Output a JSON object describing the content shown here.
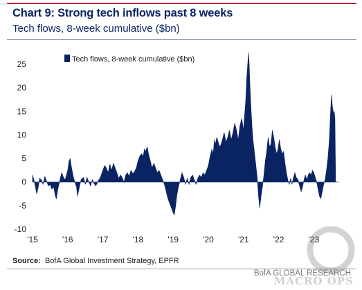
{
  "header": {
    "title": "Chart 9: Strong tech inflows past 8 weeks",
    "subtitle": "Tech flows, 8-week cumulative ($bn)"
  },
  "footer": {
    "source_label": "Source:",
    "source_text": "BofA Global Investment Strategy, EPFR",
    "credit": "BofA GLOBAL RESEARCH",
    "watermark": "MACRO OPS"
  },
  "colors": {
    "series": "#0a2463",
    "brand_red": "#c41c2c"
  },
  "chart_data": {
    "type": "area",
    "title": "",
    "xlabel": "",
    "ylabel": "",
    "ylim": [
      -10,
      27.5
    ],
    "yticks": [
      -10,
      -5,
      0,
      5,
      10,
      15,
      20,
      25
    ],
    "xlim": [
      2015.0,
      2023.72
    ],
    "xticks": [
      {
        "x": 2015,
        "label": "'15"
      },
      {
        "x": 2016,
        "label": "'16"
      },
      {
        "x": 2017,
        "label": "'17"
      },
      {
        "x": 2018,
        "label": "'18"
      },
      {
        "x": 2019,
        "label": "'19"
      },
      {
        "x": 2020,
        "label": "'20"
      },
      {
        "x": 2021,
        "label": "'21"
      },
      {
        "x": 2022,
        "label": "'22"
      },
      {
        "x": 2023,
        "label": "'23"
      }
    ],
    "grid": false,
    "legend": "top-left",
    "series": [
      {
        "name": "Tech flows, 8-week cumulative ($bn)",
        "points": [
          [
            2015.0,
            1.5
          ],
          [
            2015.04,
            0.5
          ],
          [
            2015.08,
            -1.0
          ],
          [
            2015.12,
            -2.5
          ],
          [
            2015.16,
            -1.2
          ],
          [
            2015.2,
            0.8
          ],
          [
            2015.25,
            0.5
          ],
          [
            2015.3,
            -0.5
          ],
          [
            2015.35,
            1.2
          ],
          [
            2015.4,
            0.2
          ],
          [
            2015.45,
            -0.8
          ],
          [
            2015.5,
            -0.5
          ],
          [
            2015.55,
            -1.5
          ],
          [
            2015.6,
            -1.0
          ],
          [
            2015.65,
            -3.0
          ],
          [
            2015.68,
            -3.5
          ],
          [
            2015.72,
            -1.5
          ],
          [
            2015.78,
            0.5
          ],
          [
            2015.83,
            2.0
          ],
          [
            2015.88,
            1.0
          ],
          [
            2015.93,
            0.5
          ],
          [
            2016.0,
            2.5
          ],
          [
            2016.04,
            4.5
          ],
          [
            2016.07,
            5.0
          ],
          [
            2016.1,
            3.5
          ],
          [
            2016.15,
            1.5
          ],
          [
            2016.2,
            0.0
          ],
          [
            2016.25,
            -1.0
          ],
          [
            2016.28,
            -3.0
          ],
          [
            2016.32,
            -1.5
          ],
          [
            2016.38,
            0.5
          ],
          [
            2016.45,
            1.0
          ],
          [
            2016.5,
            -0.5
          ],
          [
            2016.55,
            1.0
          ],
          [
            2016.6,
            0.0
          ],
          [
            2016.65,
            -0.8
          ],
          [
            2016.7,
            0.5
          ],
          [
            2016.75,
            -0.3
          ],
          [
            2016.8,
            -0.8
          ],
          [
            2016.87,
            0.3
          ],
          [
            2016.93,
            1.0
          ],
          [
            2017.0,
            2.5
          ],
          [
            2017.05,
            3.5
          ],
          [
            2017.1,
            3.0
          ],
          [
            2017.15,
            2.0
          ],
          [
            2017.2,
            3.8
          ],
          [
            2017.25,
            2.5
          ],
          [
            2017.3,
            4.0
          ],
          [
            2017.35,
            3.0
          ],
          [
            2017.4,
            2.0
          ],
          [
            2017.45,
            0.8
          ],
          [
            2017.5,
            1.5
          ],
          [
            2017.55,
            1.0
          ],
          [
            2017.6,
            0.0
          ],
          [
            2017.65,
            1.5
          ],
          [
            2017.7,
            2.0
          ],
          [
            2017.75,
            1.2
          ],
          [
            2017.8,
            2.5
          ],
          [
            2017.85,
            1.8
          ],
          [
            2017.9,
            2.2
          ],
          [
            2017.95,
            3.0
          ],
          [
            2018.0,
            4.5
          ],
          [
            2018.05,
            5.5
          ],
          [
            2018.1,
            6.0
          ],
          [
            2018.15,
            5.5
          ],
          [
            2018.18,
            7.0
          ],
          [
            2018.22,
            6.5
          ],
          [
            2018.26,
            7.5
          ],
          [
            2018.3,
            6.0
          ],
          [
            2018.35,
            4.5
          ],
          [
            2018.4,
            3.0
          ],
          [
            2018.45,
            4.0
          ],
          [
            2018.5,
            3.0
          ],
          [
            2018.55,
            2.0
          ],
          [
            2018.6,
            2.5
          ],
          [
            2018.65,
            1.5
          ],
          [
            2018.7,
            0.5
          ],
          [
            2018.75,
            -0.5
          ],
          [
            2018.8,
            -2.0
          ],
          [
            2018.85,
            -3.5
          ],
          [
            2018.9,
            -4.5
          ],
          [
            2018.95,
            -5.5
          ],
          [
            2019.0,
            -6.5
          ],
          [
            2019.03,
            -7.0
          ],
          [
            2019.07,
            -5.0
          ],
          [
            2019.1,
            -3.0
          ],
          [
            2019.15,
            -1.0
          ],
          [
            2019.2,
            0.5
          ],
          [
            2019.25,
            2.0
          ],
          [
            2019.3,
            1.0
          ],
          [
            2019.35,
            -0.5
          ],
          [
            2019.4,
            0.8
          ],
          [
            2019.45,
            -0.5
          ],
          [
            2019.5,
            1.0
          ],
          [
            2019.55,
            1.5
          ],
          [
            2019.6,
            0.5
          ],
          [
            2019.65,
            -0.5
          ],
          [
            2019.7,
            0.8
          ],
          [
            2019.75,
            1.5
          ],
          [
            2019.8,
            1.0
          ],
          [
            2019.85,
            2.0
          ],
          [
            2019.9,
            1.5
          ],
          [
            2019.95,
            2.5
          ],
          [
            2020.0,
            3.5
          ],
          [
            2020.05,
            5.5
          ],
          [
            2020.1,
            7.0
          ],
          [
            2020.14,
            6.0
          ],
          [
            2020.17,
            9.0
          ],
          [
            2020.2,
            8.0
          ],
          [
            2020.24,
            9.5
          ],
          [
            2020.28,
            8.5
          ],
          [
            2020.32,
            7.5
          ],
          [
            2020.36,
            8.0
          ],
          [
            2020.4,
            9.0
          ],
          [
            2020.45,
            10.5
          ],
          [
            2020.5,
            8.5
          ],
          [
            2020.55,
            9.5
          ],
          [
            2020.6,
            11.0
          ],
          [
            2020.65,
            9.0
          ],
          [
            2020.7,
            10.5
          ],
          [
            2020.75,
            12.5
          ],
          [
            2020.8,
            11.0
          ],
          [
            2020.85,
            9.0
          ],
          [
            2020.9,
            12.0
          ],
          [
            2020.95,
            13.5
          ],
          [
            2021.0,
            11.0
          ],
          [
            2021.03,
            14.0
          ],
          [
            2021.06,
            17.0
          ],
          [
            2021.09,
            22.0
          ],
          [
            2021.12,
            25.0
          ],
          [
            2021.14,
            27.5
          ],
          [
            2021.16,
            25.5
          ],
          [
            2021.18,
            21.0
          ],
          [
            2021.21,
            16.0
          ],
          [
            2021.24,
            12.0
          ],
          [
            2021.27,
            9.0
          ],
          [
            2021.3,
            7.0
          ],
          [
            2021.33,
            5.0
          ],
          [
            2021.36,
            3.0
          ],
          [
            2021.39,
            1.0
          ],
          [
            2021.42,
            -2.5
          ],
          [
            2021.46,
            -5.5
          ],
          [
            2021.5,
            -3.0
          ],
          [
            2021.54,
            -1.0
          ],
          [
            2021.58,
            1.5
          ],
          [
            2021.62,
            4.5
          ],
          [
            2021.66,
            6.5
          ],
          [
            2021.7,
            9.5
          ],
          [
            2021.74,
            7.5
          ],
          [
            2021.78,
            8.0
          ],
          [
            2021.82,
            11.0
          ],
          [
            2021.86,
            9.5
          ],
          [
            2021.9,
            7.5
          ],
          [
            2021.94,
            6.0
          ],
          [
            2021.98,
            7.0
          ],
          [
            2022.02,
            9.0
          ],
          [
            2022.06,
            7.0
          ],
          [
            2022.1,
            6.0
          ],
          [
            2022.14,
            6.5
          ],
          [
            2022.18,
            4.0
          ],
          [
            2022.22,
            2.0
          ],
          [
            2022.26,
            0.5
          ],
          [
            2022.3,
            -0.5
          ],
          [
            2022.34,
            0.8
          ],
          [
            2022.38,
            -0.5
          ],
          [
            2022.42,
            1.0
          ],
          [
            2022.46,
            2.0
          ],
          [
            2022.5,
            1.0
          ],
          [
            2022.55,
            0.5
          ],
          [
            2022.6,
            -1.0
          ],
          [
            2022.64,
            -2.0
          ],
          [
            2022.68,
            -1.0
          ],
          [
            2022.72,
            0.5
          ],
          [
            2022.76,
            1.5
          ],
          [
            2022.8,
            0.5
          ],
          [
            2022.84,
            1.5
          ],
          [
            2022.88,
            2.0
          ],
          [
            2022.92,
            1.5
          ],
          [
            2022.96,
            2.5
          ],
          [
            2023.0,
            2.0
          ],
          [
            2023.04,
            1.0
          ],
          [
            2023.08,
            0.0
          ],
          [
            2023.12,
            -1.5
          ],
          [
            2023.16,
            -3.0
          ],
          [
            2023.2,
            -3.5
          ],
          [
            2023.24,
            -2.0
          ],
          [
            2023.28,
            -0.5
          ],
          [
            2023.32,
            0.5
          ],
          [
            2023.36,
            2.5
          ],
          [
            2023.4,
            5.0
          ],
          [
            2023.44,
            9.0
          ],
          [
            2023.47,
            14.0
          ],
          [
            2023.5,
            18.5
          ],
          [
            2023.53,
            16.0
          ],
          [
            2023.56,
            14.5
          ],
          [
            2023.58,
            15.0
          ],
          [
            2023.6,
            13.5
          ],
          [
            2023.62,
            0.0
          ]
        ]
      }
    ]
  }
}
